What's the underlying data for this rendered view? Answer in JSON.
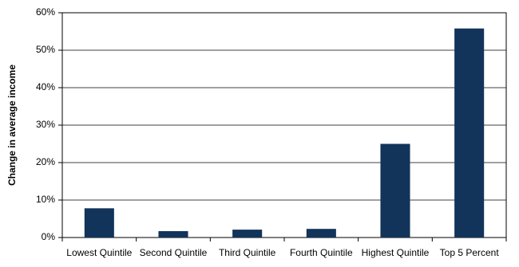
{
  "chart_data": {
    "type": "bar",
    "y_label": "Change in average income",
    "categories": [
      "Lowest Quintile",
      "Second Quintile",
      "Third Quintile",
      "Fourth Quintile",
      "Highest Quintile",
      "Top 5 Percent"
    ],
    "values": [
      7.8,
      1.7,
      2.1,
      2.3,
      25,
      55.8
    ],
    "color": "#12335a",
    "ylim": [
      0,
      60
    ],
    "yticks": [
      {
        "value": 0,
        "label": "0%"
      },
      {
        "value": 10,
        "label": "10%"
      },
      {
        "value": 20,
        "label": "20%"
      },
      {
        "value": 30,
        "label": "30%"
      },
      {
        "value": 40,
        "label": "40%"
      },
      {
        "value": 50,
        "label": "50%"
      },
      {
        "value": 60,
        "label": "60%"
      }
    ],
    "grid": true
  }
}
